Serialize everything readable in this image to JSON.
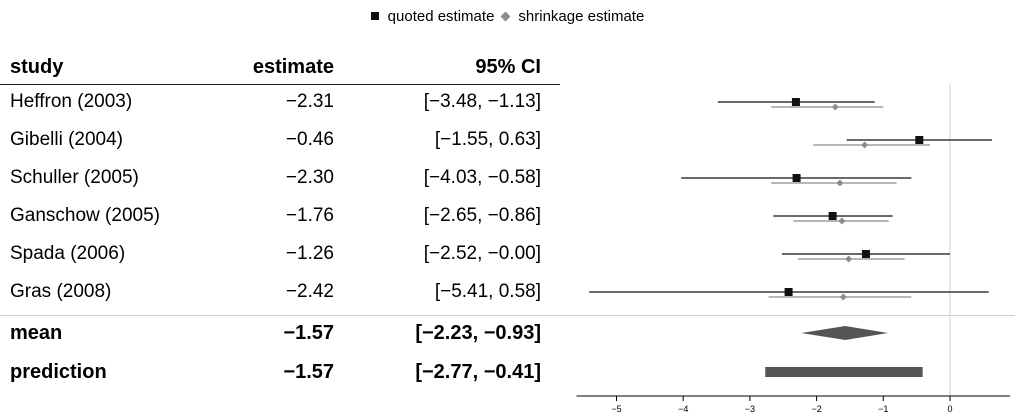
{
  "legend": {
    "quoted": "quoted estimate",
    "shrinkage": "shrinkage estimate"
  },
  "columns": {
    "study": "study",
    "estimate": "estimate",
    "ci": "95% CI"
  },
  "colors": {
    "quoted": "#111111",
    "shrinkage": "#8c8c8c",
    "summary": "#555555",
    "zero_line": "#d0d0d0"
  },
  "chart_data": {
    "type": "forest",
    "xlim": [
      -5.6,
      0.9
    ],
    "x_ticks": [
      -5,
      -4,
      -3,
      -2,
      -1,
      0
    ],
    "x_tick_labels": [
      "−5",
      "−4",
      "−3",
      "−2",
      "−1",
      "0"
    ],
    "reference_line": 0,
    "studies": [
      {
        "name": "Heffron (2003)",
        "estimate_label": "−2.31",
        "ci_label": "[−3.48, −1.13]",
        "estimate": -2.31,
        "lower": -3.48,
        "upper": -1.13,
        "shrink": -1.72,
        "shrink_lower": -2.68,
        "shrink_upper": -1.0
      },
      {
        "name": "Gibelli (2004)",
        "estimate_label": "−0.46",
        "ci_label": "[−1.55, 0.63]",
        "estimate": -0.46,
        "lower": -1.55,
        "upper": 0.63,
        "shrink": -1.28,
        "shrink_lower": -2.05,
        "shrink_upper": -0.3
      },
      {
        "name": "Schuller (2005)",
        "estimate_label": "−2.30",
        "ci_label": "[−4.03, −0.58]",
        "estimate": -2.3,
        "lower": -4.03,
        "upper": -0.58,
        "shrink": -1.65,
        "shrink_lower": -2.68,
        "shrink_upper": -0.8
      },
      {
        "name": "Ganschow (2005)",
        "estimate_label": "−1.76",
        "ci_label": "[−2.65, −0.86]",
        "estimate": -1.76,
        "lower": -2.65,
        "upper": -0.86,
        "shrink": -1.62,
        "shrink_lower": -2.35,
        "shrink_upper": -0.92
      },
      {
        "name": "Spada (2006)",
        "estimate_label": "−1.26",
        "ci_label": "[−2.52, −0.00]",
        "estimate": -1.26,
        "lower": -2.52,
        "upper": 0.0,
        "shrink": -1.52,
        "shrink_lower": -2.28,
        "shrink_upper": -0.68
      },
      {
        "name": "Gras (2008)",
        "estimate_label": "−2.42",
        "ci_label": "[−5.41, 0.58]",
        "estimate": -2.42,
        "lower": -5.41,
        "upper": 0.58,
        "shrink": -1.6,
        "shrink_lower": -2.72,
        "shrink_upper": -0.58
      }
    ],
    "summary": [
      {
        "name": "mean",
        "estimate_label": "−1.57",
        "ci_label": "[−2.23, −0.93]",
        "estimate": -1.57,
        "lower": -2.23,
        "upper": -0.93,
        "shape": "diamond"
      },
      {
        "name": "prediction",
        "estimate_label": "−1.57",
        "ci_label": "[−2.77, −0.41]",
        "estimate": -1.57,
        "lower": -2.77,
        "upper": -0.41,
        "shape": "bar"
      }
    ]
  }
}
